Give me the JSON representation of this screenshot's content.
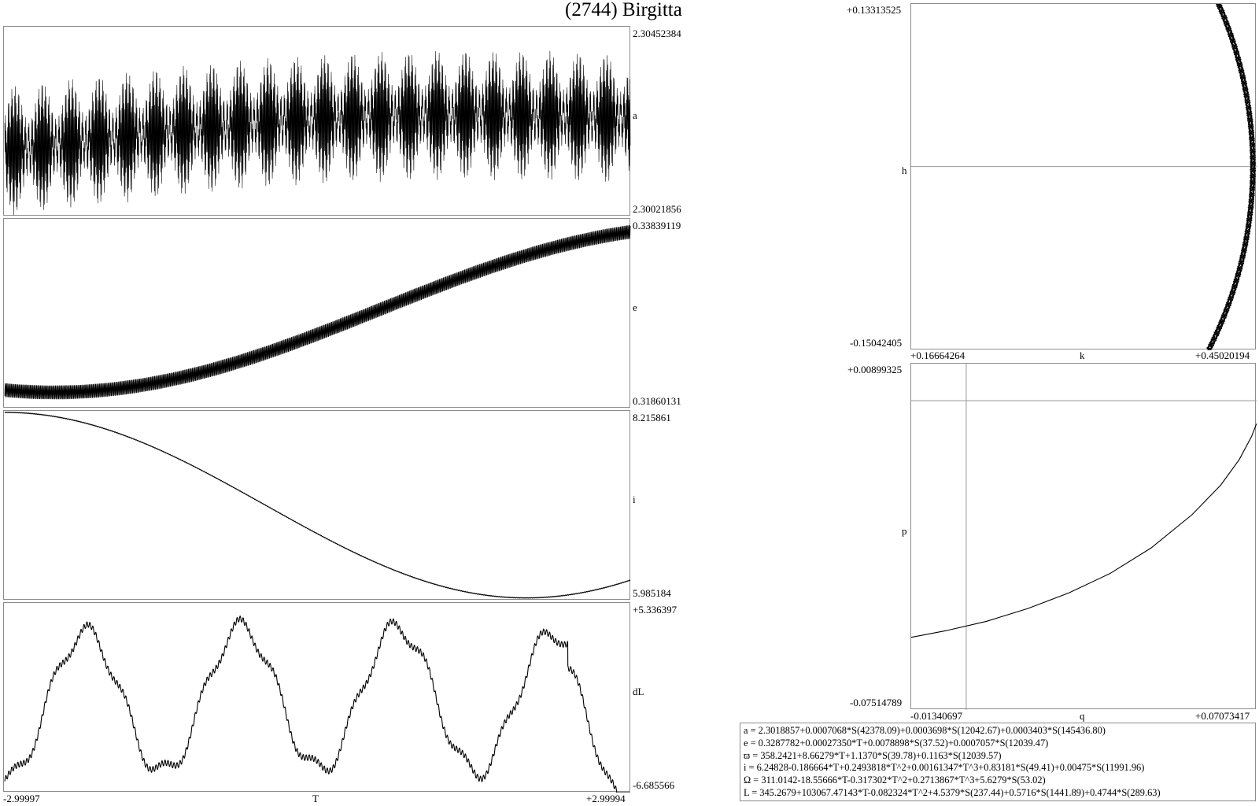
{
  "title": "(2744) Birgitta",
  "chart_data": [
    {
      "type": "line",
      "id": "a",
      "label": "a",
      "x_range": [
        -2.99997,
        2.99994
      ],
      "ylim": [
        2.30021856,
        2.30452384
      ],
      "ymax_label": "2.30452384",
      "ymin_label": "2.30021856",
      "center": 2.3018857,
      "terms": [
        {
          "amp": 0.0007068,
          "period": 42378.09
        },
        {
          "amp": 0.0003698,
          "period": 12042.67
        },
        {
          "amp": 0.0003403,
          "period": 145436.8
        }
      ]
    },
    {
      "type": "line",
      "id": "e",
      "label": "e",
      "x_range": [
        -2.99997,
        2.99994
      ],
      "ylim": [
        0.31860131,
        0.33839119
      ],
      "ymax_label": "0.33839119",
      "ymin_label": "0.31860131"
    },
    {
      "type": "line",
      "id": "i",
      "label": "i",
      "x_range": [
        -2.99997,
        2.99994
      ],
      "ylim": [
        5.985184,
        8.215861
      ],
      "ymax_label": "8.215861",
      "ymin_label": "5.985184"
    },
    {
      "type": "line",
      "id": "dL",
      "label": "dL",
      "x_range": [
        -2.99997,
        2.99994
      ],
      "ylim": [
        -6.685566,
        5.336397
      ],
      "ymax_label": "+5.336397",
      "ymin_label": "-6.685566",
      "xmin_label": "-2.99997",
      "xmax_label": "+2.99994",
      "xlabel": "T"
    },
    {
      "type": "scatter",
      "id": "kh",
      "xlabel": "k",
      "ylabel": "h",
      "xlim": [
        0.16664264,
        0.45020194
      ],
      "ylim": [
        -0.15042405,
        0.13313525
      ],
      "xmin_label": "+0.16664264",
      "xmax_label": "+0.45020194",
      "ymax_label": "+0.13313525",
      "ymin_label": "-0.15042405",
      "arc_center": [
        0.1183,
        0.0
      ],
      "arc_radius": 0.3287782,
      "angle_range_deg": [
        -27.2,
        24.1
      ]
    },
    {
      "type": "line",
      "id": "qp",
      "xlabel": "q",
      "ylabel": "p",
      "xlim": [
        -0.01340697,
        0.07073417
      ],
      "ylim": [
        -0.07514789,
        0.00899325
      ],
      "xmin_label": "-0.01340697",
      "xmax_label": "+0.07073417",
      "ymax_label": "+0.00899325",
      "ymin_label": "-0.07514789",
      "crosshair": [
        0.0,
        0.0
      ],
      "curve": [
        [
          -0.0134,
          -0.0575
        ],
        [
          -0.005,
          -0.0559
        ],
        [
          0.005,
          -0.0536
        ],
        [
          0.015,
          -0.0505
        ],
        [
          0.025,
          -0.0467
        ],
        [
          0.035,
          -0.042
        ],
        [
          0.045,
          -0.0358
        ],
        [
          0.055,
          -0.0277
        ],
        [
          0.062,
          -0.0205
        ],
        [
          0.0665,
          -0.0143
        ],
        [
          0.0695,
          -0.0087
        ],
        [
          0.0707,
          -0.0056
        ]
      ]
    }
  ],
  "formulas": [
    "a = 2.3018857+0.0007068*S(42378.09)+0.0003698*S(12042.67)+0.0003403*S(145436.80)",
    "e = 0.3287782+0.00027350*T+0.0078898*S(37.52)+0.0007057*S(12039.47)",
    "ϖ = 358.2421+8.66279*T+1.1370*S(39.78)+0.1163*S(12039.57)",
    "i = 6.24828-0.186664*T+0.2493818*T^2+0.00161347*T^3+0.83181*S(49.41)+0.00475*S(11991.96)",
    "Ω = 311.0142-18.55666*T-0.317302*T^2+0.2713867*T^3+5.6279*S(53.02)",
    "L = 345.2679+103067.47143*T-0.082324*T^2+4.5379*S(237.44)+0.5716*S(1441.89)+0.4744*S(289.63)"
  ]
}
